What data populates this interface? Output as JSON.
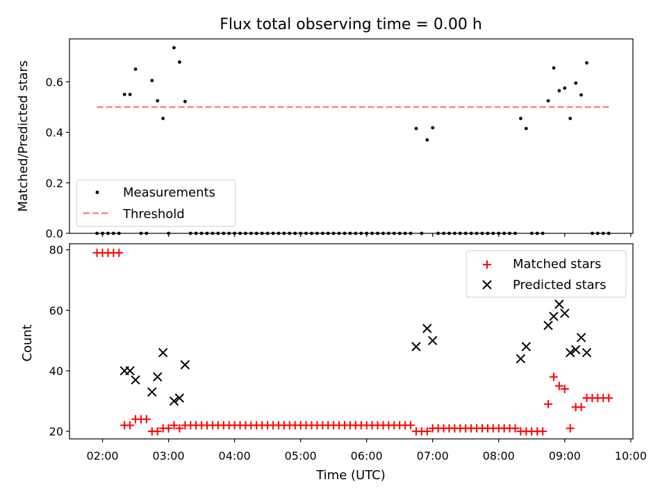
{
  "chart_data": {
    "type": "scatter",
    "title": "Flux total observing time = 0.00 h",
    "xlabel": "Time (UTC)",
    "xlim": [
      "01:30",
      "10:02"
    ],
    "xticks": [
      "02:00",
      "03:00",
      "04:00",
      "05:00",
      "06:00",
      "07:00",
      "08:00",
      "09:00",
      "10:00"
    ],
    "panels": [
      {
        "id": "ratio",
        "ylabel": "Matched/Predicted stars",
        "ylim": [
          0,
          0.77
        ],
        "yticks": [
          "0.0",
          "0.2",
          "0.4",
          "0.6"
        ],
        "legend_position": "lower-left",
        "series": [
          {
            "name": "Measurements",
            "marker": "dot",
            "color": "#000000",
            "points": [
              [
                "01:55",
                0
              ],
              [
                "02:00",
                0
              ],
              [
                "02:05",
                0
              ],
              [
                "02:10",
                0
              ],
              [
                "02:15",
                0
              ],
              [
                "02:20",
                0.55
              ],
              [
                "02:25",
                0.55
              ],
              [
                "02:30",
                0.65
              ],
              [
                "02:35",
                0
              ],
              [
                "02:40",
                0
              ],
              [
                "02:45",
                0.605
              ],
              [
                "02:50",
                0.525
              ],
              [
                "02:55",
                0.455
              ],
              [
                "03:00",
                0
              ],
              [
                "03:05",
                0.735
              ],
              [
                "03:10",
                0.678
              ],
              [
                "03:15",
                0.522
              ],
              [
                "03:20",
                0
              ],
              [
                "03:25",
                0
              ],
              [
                "03:30",
                0
              ],
              [
                "03:35",
                0
              ],
              [
                "03:40",
                0
              ],
              [
                "03:45",
                0
              ],
              [
                "03:50",
                0
              ],
              [
                "03:55",
                0
              ],
              [
                "04:00",
                0
              ],
              [
                "04:05",
                0
              ],
              [
                "04:10",
                0
              ],
              [
                "04:15",
                0
              ],
              [
                "04:20",
                0
              ],
              [
                "04:25",
                0
              ],
              [
                "04:30",
                0
              ],
              [
                "04:35",
                0
              ],
              [
                "04:40",
                0
              ],
              [
                "04:45",
                0
              ],
              [
                "04:50",
                0
              ],
              [
                "04:55",
                0
              ],
              [
                "05:00",
                0
              ],
              [
                "05:05",
                0
              ],
              [
                "05:10",
                0
              ],
              [
                "05:15",
                0
              ],
              [
                "05:20",
                0
              ],
              [
                "05:25",
                0
              ],
              [
                "05:30",
                0
              ],
              [
                "05:35",
                0
              ],
              [
                "05:40",
                0
              ],
              [
                "05:45",
                0
              ],
              [
                "05:50",
                0
              ],
              [
                "05:55",
                0
              ],
              [
                "06:00",
                0
              ],
              [
                "06:05",
                0
              ],
              [
                "06:10",
                0
              ],
              [
                "06:15",
                0
              ],
              [
                "06:20",
                0
              ],
              [
                "06:25",
                0
              ],
              [
                "06:30",
                0
              ],
              [
                "06:35",
                0
              ],
              [
                "06:40",
                0
              ],
              [
                "06:45",
                0.415
              ],
              [
                "06:50",
                0
              ],
              [
                "06:55",
                0.37
              ],
              [
                "07:00",
                0.418
              ],
              [
                "07:05",
                0
              ],
              [
                "07:10",
                0
              ],
              [
                "07:15",
                0
              ],
              [
                "07:20",
                0
              ],
              [
                "07:25",
                0
              ],
              [
                "07:30",
                0
              ],
              [
                "07:35",
                0
              ],
              [
                "07:40",
                0
              ],
              [
                "07:45",
                0
              ],
              [
                "07:50",
                0
              ],
              [
                "07:55",
                0
              ],
              [
                "08:00",
                0
              ],
              [
                "08:05",
                0
              ],
              [
                "08:10",
                0
              ],
              [
                "08:15",
                0
              ],
              [
                "08:20",
                0.455
              ],
              [
                "08:25",
                0.415
              ],
              [
                "08:30",
                0
              ],
              [
                "08:35",
                0
              ],
              [
                "08:40",
                0
              ],
              [
                "08:45",
                0.525
              ],
              [
                "08:50",
                0.655
              ],
              [
                "08:55",
                0.565
              ],
              [
                "09:00",
                0.575
              ],
              [
                "09:05",
                0.455
              ],
              [
                "09:10",
                0.595
              ],
              [
                "09:15",
                0.548
              ],
              [
                "09:20",
                0.675
              ],
              [
                "09:25",
                0
              ],
              [
                "09:30",
                0
              ],
              [
                "09:35",
                0
              ],
              [
                "09:40",
                0
              ]
            ]
          },
          {
            "name": "Threshold",
            "style": "dashed",
            "color": "#ff7f7f",
            "x": [
              "01:55",
              "09:40"
            ],
            "y": 0.5
          }
        ]
      },
      {
        "id": "count",
        "ylabel": "Count",
        "ylim": [
          17.5,
          82
        ],
        "yticks": [
          "20",
          "40",
          "60",
          "80"
        ],
        "legend_position": "upper-right",
        "series": [
          {
            "name": "Matched stars",
            "marker": "plus",
            "color": "#ff0000",
            "points": [
              [
                "01:55",
                79
              ],
              [
                "02:00",
                79
              ],
              [
                "02:05",
                79
              ],
              [
                "02:10",
                79
              ],
              [
                "02:15",
                79
              ],
              [
                "02:20",
                22
              ],
              [
                "02:25",
                22
              ],
              [
                "02:30",
                24
              ],
              [
                "02:35",
                24
              ],
              [
                "02:40",
                24
              ],
              [
                "02:45",
                20
              ],
              [
                "02:50",
                20
              ],
              [
                "02:55",
                21
              ],
              [
                "03:00",
                21
              ],
              [
                "03:05",
                22
              ],
              [
                "03:10",
                21
              ],
              [
                "03:15",
                22
              ],
              [
                "03:20",
                22
              ],
              [
                "03:25",
                22
              ],
              [
                "03:30",
                22
              ],
              [
                "03:35",
                22
              ],
              [
                "03:40",
                22
              ],
              [
                "03:45",
                22
              ],
              [
                "03:50",
                22
              ],
              [
                "03:55",
                22
              ],
              [
                "04:00",
                22
              ],
              [
                "04:05",
                22
              ],
              [
                "04:10",
                22
              ],
              [
                "04:15",
                22
              ],
              [
                "04:20",
                22
              ],
              [
                "04:25",
                22
              ],
              [
                "04:30",
                22
              ],
              [
                "04:35",
                22
              ],
              [
                "04:40",
                22
              ],
              [
                "04:45",
                22
              ],
              [
                "04:50",
                22
              ],
              [
                "04:55",
                22
              ],
              [
                "05:00",
                22
              ],
              [
                "05:05",
                22
              ],
              [
                "05:10",
                22
              ],
              [
                "05:15",
                22
              ],
              [
                "05:20",
                22
              ],
              [
                "05:25",
                22
              ],
              [
                "05:30",
                22
              ],
              [
                "05:35",
                22
              ],
              [
                "05:40",
                22
              ],
              [
                "05:45",
                22
              ],
              [
                "05:50",
                22
              ],
              [
                "05:55",
                22
              ],
              [
                "06:00",
                22
              ],
              [
                "06:05",
                22
              ],
              [
                "06:10",
                22
              ],
              [
                "06:15",
                22
              ],
              [
                "06:20",
                22
              ],
              [
                "06:25",
                22
              ],
              [
                "06:30",
                22
              ],
              [
                "06:35",
                22
              ],
              [
                "06:40",
                22
              ],
              [
                "06:45",
                20
              ],
              [
                "06:50",
                20
              ],
              [
                "06:55",
                20
              ],
              [
                "07:00",
                21
              ],
              [
                "07:05",
                21
              ],
              [
                "07:10",
                21
              ],
              [
                "07:15",
                21
              ],
              [
                "07:20",
                21
              ],
              [
                "07:25",
                21
              ],
              [
                "07:30",
                21
              ],
              [
                "07:35",
                21
              ],
              [
                "07:40",
                21
              ],
              [
                "07:45",
                21
              ],
              [
                "07:50",
                21
              ],
              [
                "07:55",
                21
              ],
              [
                "08:00",
                21
              ],
              [
                "08:05",
                21
              ],
              [
                "08:10",
                21
              ],
              [
                "08:15",
                21
              ],
              [
                "08:20",
                20
              ],
              [
                "08:25",
                20
              ],
              [
                "08:30",
                20
              ],
              [
                "08:35",
                20
              ],
              [
                "08:40",
                20
              ],
              [
                "08:45",
                29
              ],
              [
                "08:50",
                38
              ],
              [
                "08:55",
                35
              ],
              [
                "09:00",
                34
              ],
              [
                "09:05",
                21
              ],
              [
                "09:10",
                28
              ],
              [
                "09:15",
                28
              ],
              [
                "09:20",
                31
              ],
              [
                "09:25",
                31
              ],
              [
                "09:30",
                31
              ],
              [
                "09:35",
                31
              ],
              [
                "09:40",
                31
              ]
            ]
          },
          {
            "name": "Predicted stars",
            "marker": "x",
            "color": "#000000",
            "points": [
              [
                "02:20",
                40
              ],
              [
                "02:25",
                40
              ],
              [
                "02:30",
                37
              ],
              [
                "02:45",
                33
              ],
              [
                "02:50",
                38
              ],
              [
                "02:55",
                46
              ],
              [
                "03:05",
                30
              ],
              [
                "03:10",
                31
              ],
              [
                "03:15",
                42
              ],
              [
                "06:45",
                48
              ],
              [
                "06:55",
                54
              ],
              [
                "07:00",
                50
              ],
              [
                "08:20",
                44
              ],
              [
                "08:25",
                48
              ],
              [
                "08:45",
                55
              ],
              [
                "08:50",
                58
              ],
              [
                "08:55",
                62
              ],
              [
                "09:00",
                59
              ],
              [
                "09:05",
                46
              ],
              [
                "09:10",
                47
              ],
              [
                "09:15",
                51
              ],
              [
                "09:20",
                46
              ]
            ]
          }
        ]
      }
    ]
  }
}
